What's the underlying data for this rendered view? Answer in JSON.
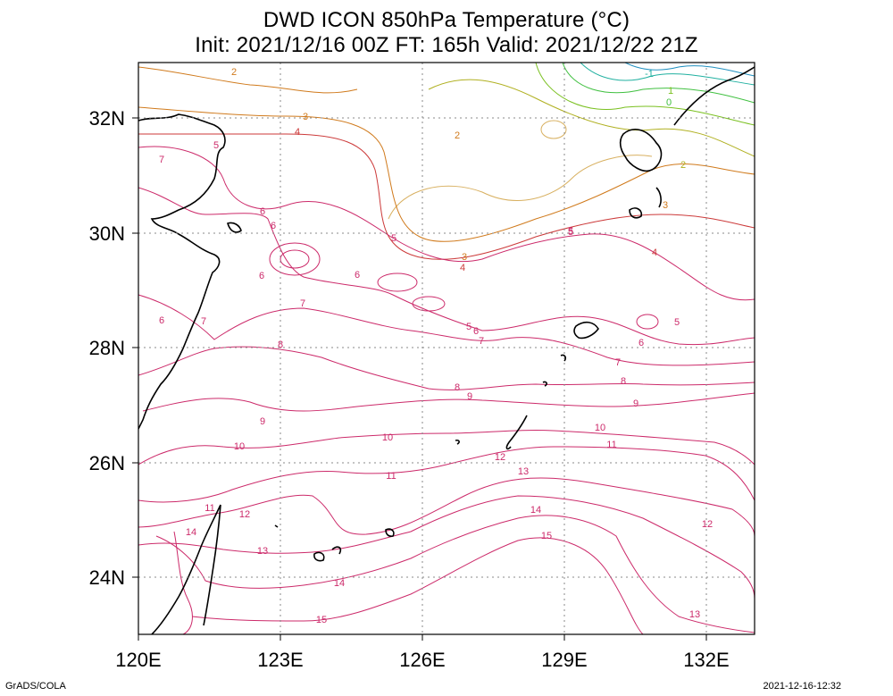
{
  "title": {
    "line1": "DWD ICON 850hPa Temperature (°C)",
    "line2": "Init: 2021/12/16 00Z  FT: 165h  Valid: 2021/12/22 21Z"
  },
  "axes": {
    "lat_labels": [
      "32N",
      "30N",
      "28N",
      "26N",
      "24N"
    ],
    "lon_labels": [
      "120E",
      "123E",
      "126E",
      "129E",
      "132E"
    ]
  },
  "contour_labels": [
    {
      "text": "2",
      "color": "#d07a1c"
    },
    {
      "text": "3",
      "color": "#d07a1c"
    },
    {
      "text": "4",
      "color": "#cc3a3a"
    },
    {
      "text": "5",
      "color": "#cc2a6a"
    },
    {
      "text": "6",
      "color": "#cc2a6a"
    },
    {
      "text": "6",
      "color": "#cc2a6a"
    },
    {
      "text": "5",
      "color": "#cc2a6a"
    },
    {
      "text": "6",
      "color": "#cc2a6a"
    },
    {
      "text": "7",
      "color": "#cc2a6a"
    },
    {
      "text": "7",
      "color": "#cc2a6a"
    },
    {
      "text": "6",
      "color": "#cc2a6a"
    },
    {
      "text": "8",
      "color": "#cc2a6a"
    },
    {
      "text": "5",
      "color": "#cc2a6a"
    },
    {
      "text": "6",
      "color": "#cc2a6a"
    },
    {
      "text": "7",
      "color": "#cc2a6a"
    },
    {
      "text": "8",
      "color": "#cc2a6a"
    },
    {
      "text": "9",
      "color": "#cc2a6a"
    },
    {
      "text": "9",
      "color": "#cc2a6a"
    },
    {
      "text": "10",
      "color": "#cc2a6a"
    },
    {
      "text": "10",
      "color": "#cc2a6a"
    },
    {
      "text": "11",
      "color": "#cc2a6a"
    },
    {
      "text": "12",
      "color": "#cc2a6a"
    },
    {
      "text": "13",
      "color": "#cc2a6a"
    },
    {
      "text": "11",
      "color": "#cc2a6a"
    },
    {
      "text": "12",
      "color": "#cc2a6a"
    },
    {
      "text": "14",
      "color": "#cc2a6a"
    },
    {
      "text": "13",
      "color": "#cc2a6a"
    },
    {
      "text": "14",
      "color": "#cc2a6a"
    },
    {
      "text": "15",
      "color": "#cc2a6a"
    },
    {
      "text": "14",
      "color": "#cc2a6a"
    },
    {
      "text": "15",
      "color": "#cc2a6a"
    },
    {
      "text": "12",
      "color": "#cc2a6a"
    },
    {
      "text": "13",
      "color": "#cc2a6a"
    },
    {
      "text": "11",
      "color": "#cc2a6a"
    },
    {
      "text": "10",
      "color": "#cc2a6a"
    },
    {
      "text": "9",
      "color": "#cc2a6a"
    },
    {
      "text": "8",
      "color": "#cc2a6a"
    },
    {
      "text": "7",
      "color": "#cc2a6a"
    },
    {
      "text": "6",
      "color": "#cc2a6a"
    },
    {
      "text": "5",
      "color": "#cc2a6a"
    },
    {
      "text": "4",
      "color": "#cc3a3a"
    },
    {
      "text": "3",
      "color": "#d07a1c"
    },
    {
      "text": "3",
      "color": "#d07a1c"
    },
    {
      "text": "4",
      "color": "#cc3a3a"
    },
    {
      "text": "5",
      "color": "#cc2a6a"
    },
    {
      "text": "2",
      "color": "#d07a1c"
    },
    {
      "text": "2",
      "color": "#b0b020"
    },
    {
      "text": "1",
      "color": "#7ac020"
    },
    {
      "text": "0",
      "color": "#40c040"
    },
    {
      "text": "-1",
      "color": "#20b0a0"
    },
    {
      "text": "7",
      "color": "#cc2a6a"
    },
    {
      "text": "6",
      "color": "#cc2a6a"
    },
    {
      "text": "5",
      "color": "#cc2a6a"
    }
  ],
  "footer": {
    "left": "GrADS/COLA",
    "right": "2021-12-16-12:32"
  }
}
